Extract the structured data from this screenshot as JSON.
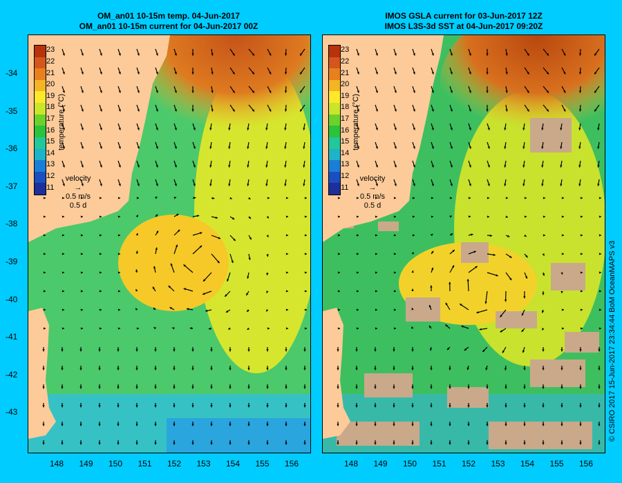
{
  "panels": [
    {
      "title_line1": "OM_an01 10-15m temp. 04-Jun-2017",
      "title_line2": "OM_an01 10-15m current for 04-Jun-2017 00Z"
    },
    {
      "title_line1": "IMOS GSLA current for 03-Jun-2017 12Z",
      "title_line2": "IMOS L3S-3d SST at 04-Jun-2017 09:20Z"
    }
  ],
  "lat_ticks": [
    "-34",
    "-35",
    "-36",
    "-37",
    "-38",
    "-39",
    "-40",
    "-41",
    "-42",
    "-43"
  ],
  "lon_ticks": [
    "148",
    "149",
    "150",
    "151",
    "152",
    "153",
    "154",
    "155",
    "156"
  ],
  "colorbar": {
    "title": "temperature (°C)",
    "labels": [
      "23",
      "22",
      "21",
      "20",
      "19",
      "18",
      "17",
      "16",
      "15",
      "14",
      "13",
      "12",
      "11"
    ],
    "colors": [
      "#b8320c",
      "#d4561c",
      "#e8801e",
      "#f4b424",
      "#fde82a",
      "#c9e62a",
      "#6ad22a",
      "#2cc23a",
      "#22c79a",
      "#1fb3c8",
      "#1a7ed8",
      "#1a4fc0",
      "#1d2f9a"
    ]
  },
  "velocity_legend": {
    "label": "velocity",
    "speed": "0.5 m/s",
    "duration": "0.5 d"
  },
  "credit": "© CSIRO 2017  15-Jun-2017 23:34:44 BoM OceanMAPS v3",
  "colors": {
    "background": "#00ccff",
    "land": "#fccb99",
    "missing_data": "#c9a98a"
  }
}
